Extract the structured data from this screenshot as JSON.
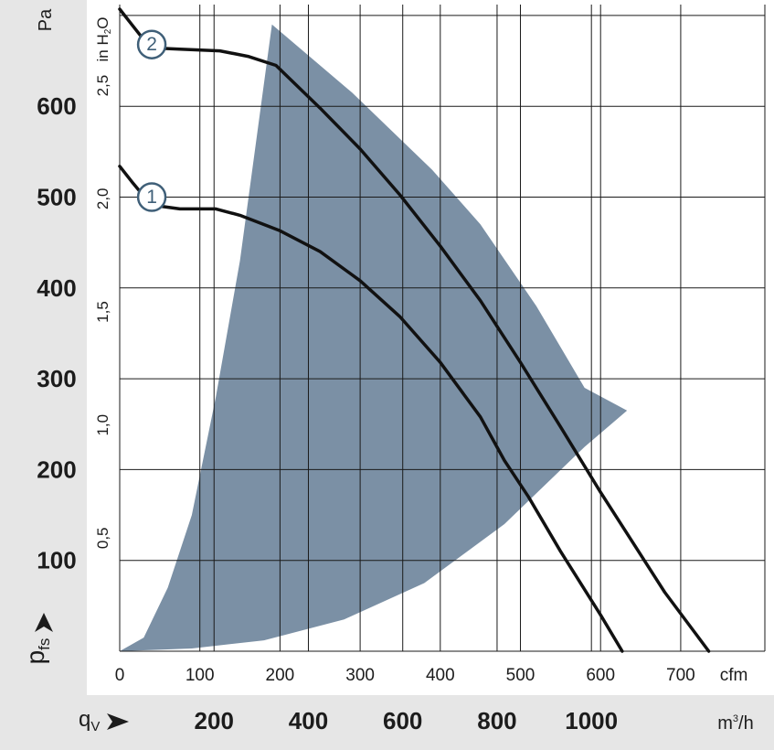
{
  "chart_data": {
    "type": "line",
    "x_unit_primary": "cfm",
    "x_unit_secondary": "m³/h",
    "x_label": "qV",
    "y_unit_primary": "Pa",
    "y_unit_secondary": "in H2O",
    "y_label": "pfs",
    "x_ticks_cfm": [
      "0",
      "100",
      "200",
      "300",
      "400",
      "500",
      "600",
      "700"
    ],
    "x_ticks_m3h": [
      "200",
      "400",
      "600",
      "800",
      "1000"
    ],
    "y_ticks_pa": [
      "100",
      "200",
      "300",
      "400",
      "500",
      "600"
    ],
    "y_ticks_inh2o": [
      "0,5",
      "1,0",
      "1,5",
      "2,0",
      "2,5"
    ],
    "xlim_cfm": [
      0,
      805
    ],
    "ylim_pa": [
      0,
      712
    ],
    "grid": true,
    "series": [
      {
        "name": "1",
        "points_cfm_pa": [
          [
            0,
            534
          ],
          [
            15,
            517
          ],
          [
            33,
            498
          ],
          [
            50,
            490
          ],
          [
            75,
            487
          ],
          [
            120,
            487
          ],
          [
            150,
            480
          ],
          [
            200,
            463
          ],
          [
            250,
            440
          ],
          [
            300,
            408
          ],
          [
            350,
            368
          ],
          [
            400,
            318
          ],
          [
            450,
            258
          ],
          [
            480,
            210
          ],
          [
            510,
            170
          ],
          [
            550,
            110
          ],
          [
            600,
            40
          ],
          [
            627,
            0
          ]
        ]
      },
      {
        "name": "2",
        "points_cfm_pa": [
          [
            0,
            707
          ],
          [
            15,
            690
          ],
          [
            33,
            670
          ],
          [
            50,
            664
          ],
          [
            75,
            663
          ],
          [
            125,
            661
          ],
          [
            160,
            655
          ],
          [
            195,
            645
          ],
          [
            250,
            598
          ],
          [
            300,
            553
          ],
          [
            350,
            502
          ],
          [
            400,
            446
          ],
          [
            450,
            386
          ],
          [
            500,
            318
          ],
          [
            550,
            247
          ],
          [
            600,
            175
          ],
          [
            640,
            120
          ],
          [
            680,
            65
          ],
          [
            735,
            0
          ]
        ]
      }
    ],
    "operating_range_polygon_cfm_pa": [
      [
        0,
        0
      ],
      [
        30,
        15
      ],
      [
        60,
        70
      ],
      [
        90,
        150
      ],
      [
        120,
        280
      ],
      [
        150,
        430
      ],
      [
        170,
        560
      ],
      [
        190,
        690
      ],
      [
        290,
        615
      ],
      [
        390,
        530
      ],
      [
        450,
        470
      ],
      [
        520,
        380
      ],
      [
        580,
        290
      ],
      [
        633,
        265
      ],
      [
        580,
        225
      ],
      [
        480,
        140
      ],
      [
        380,
        75
      ],
      [
        280,
        35
      ],
      [
        180,
        12
      ],
      [
        90,
        3
      ],
      [
        0,
        0
      ]
    ],
    "labels": [
      "1",
      "2"
    ],
    "colors": {
      "operating_range": "#7b90a5",
      "curves": "#111111",
      "marker": "#3f5f78",
      "panel": "#e6e6e6"
    }
  }
}
